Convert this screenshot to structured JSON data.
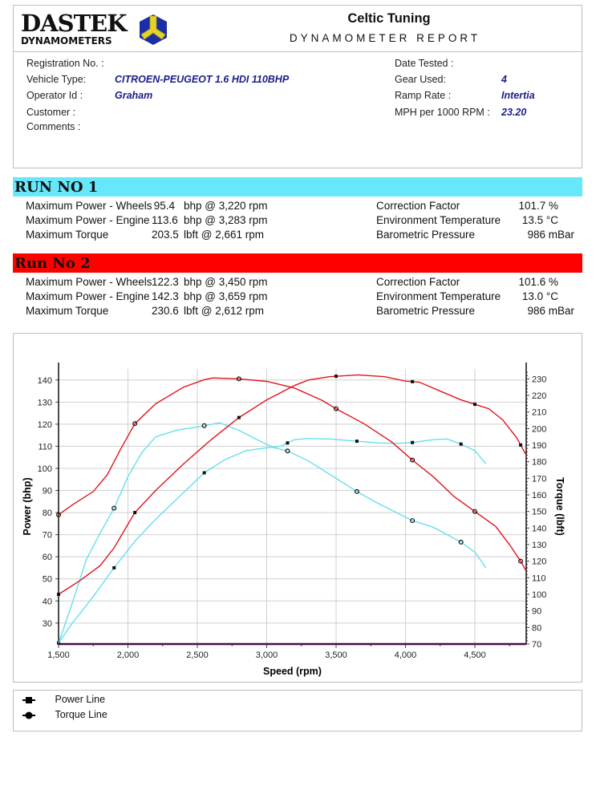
{
  "header": {
    "logo_text": "DASTEK",
    "logo_sub": "DYNAMOMETERS",
    "company": "Celtic Tuning",
    "report_title": "DYNAMOMETER REPORT"
  },
  "vehicle": {
    "registration_label": "Registration No. :",
    "registration": "",
    "vehicle_type_label": "Vehicle Type:",
    "vehicle_type": "CITROEN-PEUGEOT 1.6 HDI 110BHP",
    "operator_label": "Operator Id :",
    "operator": "Graham",
    "customer_label": "Customer :",
    "comments_label": "Comments :",
    "date_label": "Date Tested :",
    "gear_label": "Gear Used:",
    "gear": "4",
    "ramp_label": "Ramp Rate :",
    "ramp": "Intertia",
    "mph_label": "MPH per 1000 RPM :",
    "mph": "23.20"
  },
  "runs": [
    {
      "title": "RUN NO 1",
      "color": "#66e8fa",
      "rows": [
        {
          "label": "Maximum Power - Wheels",
          "value": "95.4",
          "unit": "bhp @ 3,220 rpm",
          "env_label": "Correction Factor",
          "env_value": "101.7 %"
        },
        {
          "label": "Maximum Power - Engine",
          "value": "113.6",
          "unit": "bhp @ 3,283 rpm",
          "env_label": "Environment Temperature",
          "env_value": "13.5 °C"
        },
        {
          "label": "Maximum Torque",
          "value": "203.5",
          "unit": "lbft @ 2,661 rpm",
          "env_label": "Barometric Pressure",
          "env_value": "986 mBar"
        }
      ]
    },
    {
      "title": "Run No 2",
      "color": "#ff0000",
      "rows": [
        {
          "label": "Maximum Power - Wheels",
          "value": "122.3",
          "unit": "bhp @ 3,450 rpm",
          "env_label": "Correction Factor",
          "env_value": "101.6 %"
        },
        {
          "label": "Maximum Power - Engine",
          "value": "142.3",
          "unit": "bhp @ 3,659 rpm",
          "env_label": "Environment Temperature",
          "env_value": "13.0 °C"
        },
        {
          "label": "Maximum Torque",
          "value": "230.6",
          "unit": "lbft @ 2,612 rpm",
          "env_label": "Barometric Pressure",
          "env_value": "986 mBar"
        }
      ]
    }
  ],
  "legend": [
    {
      "label": "Power Line",
      "marker": "square"
    },
    {
      "label": "Torque Line",
      "marker": "circle"
    }
  ],
  "chart_data": {
    "type": "line",
    "xlabel": "Speed (rpm)",
    "ylabel": "Power (bhp)",
    "y2label": "Torque (lbft)",
    "xlim": [
      1500,
      4870
    ],
    "ylim": [
      20.5,
      145
    ],
    "y2lim": [
      70,
      236
    ],
    "xticks": [
      1500,
      2000,
      2500,
      3000,
      3500,
      4000,
      4500
    ],
    "yticks": [
      30,
      40,
      50,
      60,
      70,
      80,
      90,
      100,
      110,
      120,
      130,
      140
    ],
    "y2ticks": [
      70,
      80,
      90,
      100,
      110,
      120,
      130,
      140,
      150,
      160,
      170,
      180,
      190,
      200,
      210,
      220,
      230
    ],
    "grid": true,
    "series": [
      {
        "run": "RUN NO 1",
        "kind": "power",
        "axis": "left",
        "color": "#66dfee",
        "marker": "square",
        "x": [
          1500,
          1600,
          1750,
          1900,
          2050,
          2200,
          2400,
          2550,
          2700,
          2850,
          3000,
          3100,
          3200,
          3300,
          3450,
          3650,
          3800,
          3950,
          4050,
          4200,
          4300,
          4400,
          4500,
          4580
        ],
        "y": [
          21,
          30,
          42,
          55,
          67,
          77,
          89,
          98,
          104,
          108,
          109.3,
          110,
          113,
          113.5,
          113.3,
          112.3,
          111.5,
          111.3,
          111.7,
          113,
          113.3,
          111,
          108,
          102
        ],
        "markers": [
          1500,
          1900,
          2550,
          3150,
          3650,
          4050,
          4400
        ]
      },
      {
        "run": "RUN NO 1",
        "kind": "torque",
        "axis": "right",
        "color": "#66dfee",
        "marker": "circle",
        "x": [
          1500,
          1600,
          1700,
          1800,
          1900,
          2000,
          2100,
          2200,
          2350,
          2500,
          2661,
          2800,
          2950,
          3050,
          3150,
          3300,
          3500,
          3650,
          3800,
          4050,
          4200,
          4400,
          4500,
          4580
        ],
        "y": [
          70.5,
          95,
          121,
          137,
          152,
          171,
          185.5,
          195,
          199,
          201,
          203.5,
          199,
          192.5,
          188.5,
          186.5,
          180.5,
          170,
          162,
          155,
          144.5,
          140.5,
          131.5,
          125.5,
          116
        ],
        "markers": [
          1900,
          2550,
          3150,
          3650,
          4050,
          4400
        ]
      },
      {
        "run": "Run No 2",
        "kind": "power",
        "axis": "left",
        "color": "#e0141c",
        "marker": "square",
        "x": [
          1500,
          1650,
          1800,
          1900,
          2050,
          2200,
          2400,
          2600,
          2800,
          3000,
          3200,
          3300,
          3450,
          3659,
          3850,
          4000,
          4100,
          4250,
          4400,
          4500,
          4600,
          4700,
          4800,
          4870
        ],
        "y": [
          43,
          49,
          56,
          64,
          80,
          90,
          102,
          113,
          123,
          131,
          137.5,
          140,
          141.5,
          142.3,
          141.5,
          139.5,
          139,
          135,
          131,
          129,
          127,
          122,
          114,
          106
        ],
        "markers": [
          1500,
          2050,
          2800,
          3500,
          4050,
          4500,
          4830
        ]
      },
      {
        "run": "Run No 2",
        "kind": "torque",
        "axis": "right",
        "color": "#e0141c",
        "marker": "circle",
        "x": [
          1500,
          1600,
          1750,
          1850,
          1950,
          2050,
          2200,
          2400,
          2550,
          2612,
          2800,
          3000,
          3200,
          3400,
          3500,
          3700,
          3900,
          4050,
          4200,
          4350,
          4500,
          4650,
          4750,
          4830,
          4870
        ],
        "y": [
          148,
          154,
          162,
          172,
          188,
          203,
          215,
          225,
          229.5,
          230.6,
          230,
          228.5,
          224.5,
          217,
          212,
          203,
          192,
          181,
          171,
          159,
          150,
          141,
          130,
          120,
          114
        ],
        "markers": [
          1500,
          2050,
          2800,
          3500,
          4050,
          4500,
          4830
        ]
      }
    ]
  }
}
